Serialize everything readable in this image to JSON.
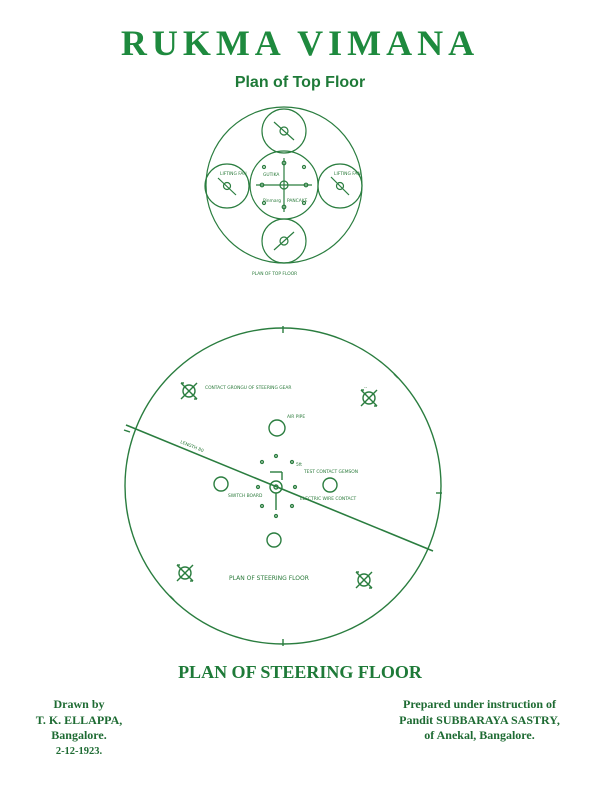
{
  "header": {
    "title": "RUKMA VIMANA",
    "subtitle": "Plan of Top Floor"
  },
  "top_floor": {
    "center_label": "GUTIKA",
    "center_lower_label": "PANCAKE",
    "center_left_small": "Pinmarg",
    "fan_left": "LIFTING FAN",
    "fan_right": "LIFTING FAN",
    "caption": "PLAN OF TOP FLOOR"
  },
  "steering_floor": {
    "label_corner_tl": "CONTACT GRONGU OF STEERING GEAR",
    "label_air_pipe": "AIR PIPE",
    "label_length": "LENGTH 80",
    "label_5ft": "5ft",
    "label_contact": "TEST CONTACT GEMSON",
    "label_switch": "SWITCH BOARD",
    "label_electric": "ELECTRIC WIRE CONTACT",
    "label_small_tr": "--",
    "caption": "PLAN OF STEERING FLOOR"
  },
  "section_title": "PLAN OF STEERING FLOOR",
  "credits": {
    "drawn_by": [
      "Drawn by",
      "T. K. ELLAPPA,",
      "Bangalore.",
      "2-12-1923."
    ],
    "prepared": [
      "Prepared under instruction of",
      "Pandit  SUBBARAYA  SASTRY,",
      "of Anekal, Bangalore."
    ]
  },
  "colors": {
    "ink": "#1e7a38",
    "line": "#2a7d3f"
  }
}
